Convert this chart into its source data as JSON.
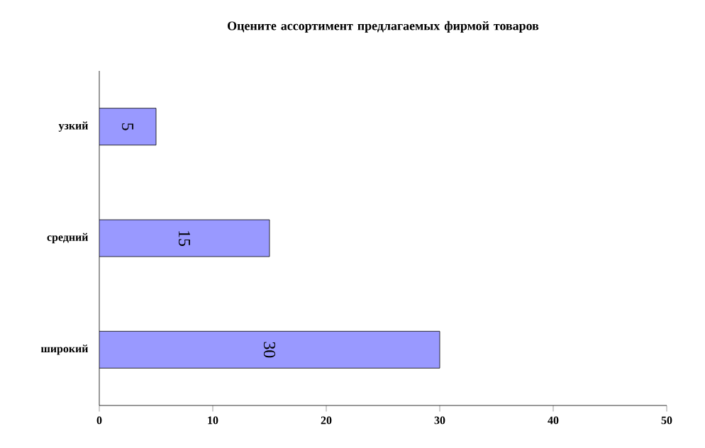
{
  "chart_data": {
    "type": "bar",
    "orientation": "horizontal",
    "title": "Оцените ассортимент предлагаемых фирмой товаров",
    "categories": [
      "узкий",
      "средний",
      "широкий"
    ],
    "values": [
      5,
      15,
      30
    ],
    "color": "#9999ff",
    "xlim": [
      0,
      50
    ],
    "xticks": [
      0,
      10,
      20,
      30,
      40,
      50
    ],
    "data_labels": true
  }
}
